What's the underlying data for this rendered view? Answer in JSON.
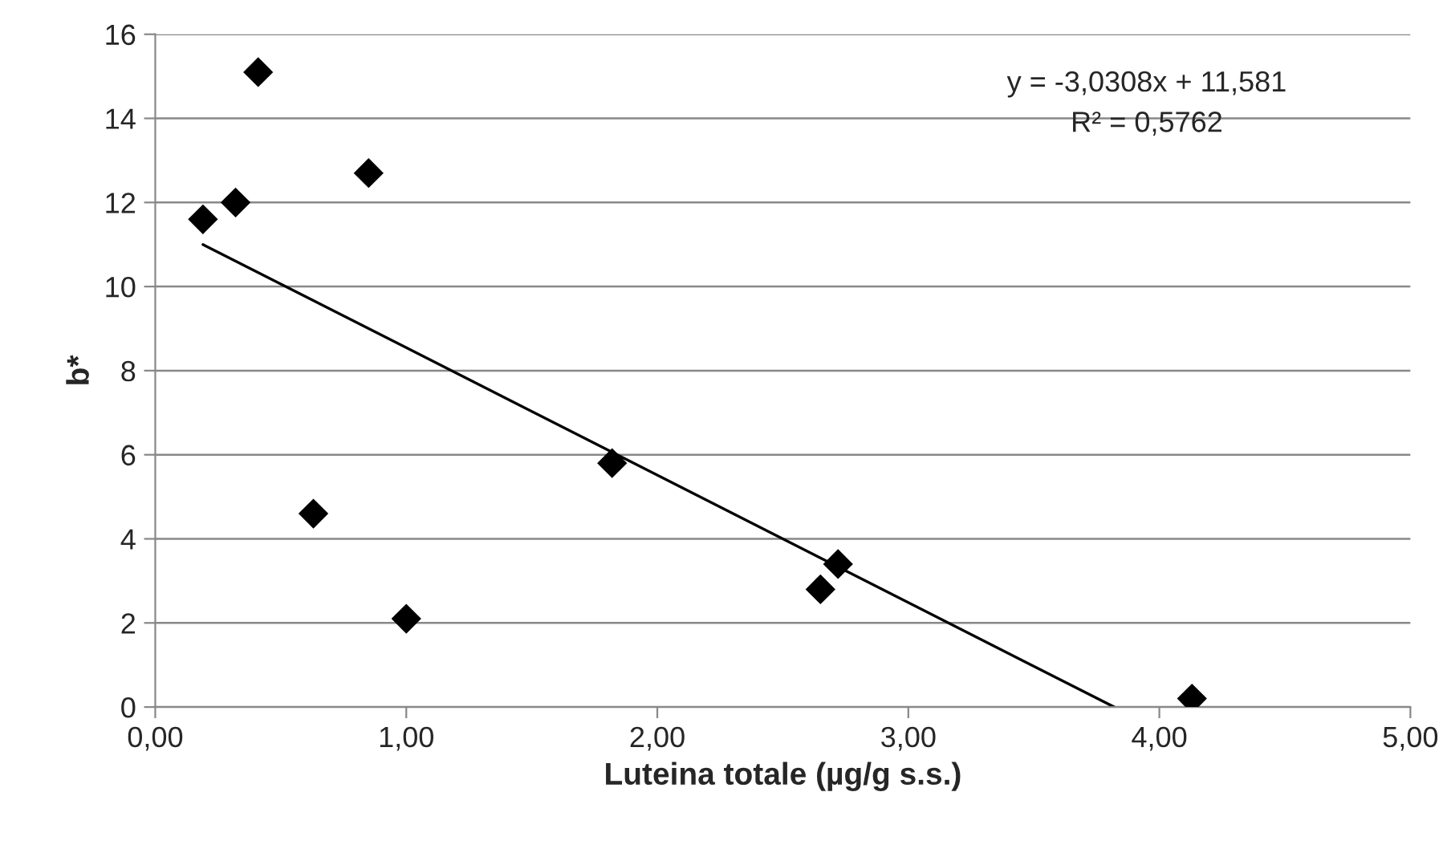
{
  "chart_data": {
    "type": "scatter",
    "xlabel": "Luteina totale (µg/g s.s.)",
    "ylabel": "b*",
    "series": [
      {
        "color": "#000000",
        "marker": "diamond",
        "x": [
          0.19,
          0.32,
          0.41,
          0.85,
          0.63,
          1.0,
          1.82,
          2.65,
          2.72,
          4.13
        ],
        "values": [
          11.6,
          12.0,
          15.1,
          12.7,
          4.6,
          2.1,
          5.8,
          2.8,
          3.4,
          0.2
        ]
      },
      {
        "type": "line",
        "color": "#000000",
        "marker": "none",
        "line_style": "solid",
        "x": [
          0.19,
          3.82
        ],
        "values": [
          11.0,
          0.0
        ]
      }
    ],
    "annotations": [
      "y = -3,0308x + 11,581",
      "R² = 0,5762"
    ],
    "xlim": [
      0,
      5
    ],
    "xticks": [
      {
        "value": 0,
        "label": "0,00"
      },
      {
        "value": 1,
        "label": "1,00"
      },
      {
        "value": 2,
        "label": "2,00"
      },
      {
        "value": 3,
        "label": "3,00"
      },
      {
        "value": 4,
        "label": "4,00"
      },
      {
        "value": 5,
        "label": "5,00"
      }
    ],
    "ylim": [
      0,
      16
    ],
    "yticks": [
      0,
      2,
      4,
      6,
      8,
      10,
      12,
      14,
      16
    ],
    "grid": "y",
    "legend": false
  }
}
